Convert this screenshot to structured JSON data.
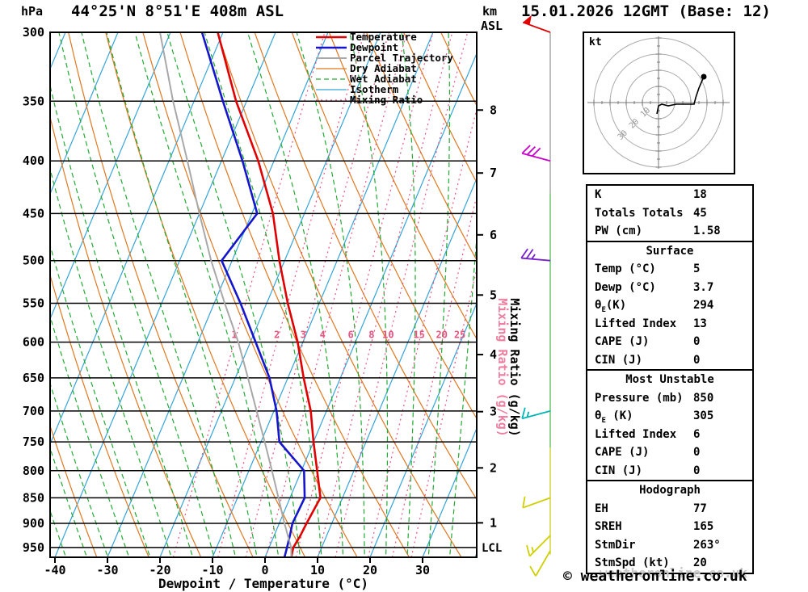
{
  "header": {
    "pressure_unit": "hPa",
    "title": "44°25'N 8°51'E 408m ASL",
    "km_label": "km",
    "asl_label": "ASL",
    "datetime": "15.01.2026 12GMT (Base: 12)"
  },
  "chart_data": {
    "type": "skewt-logp-sounding",
    "xlabel": "Dewpoint / Temperature (°C)",
    "mixing_ratio_axis_label": "Mixing Ratio (g/kg)",
    "pressure_ticks": [
      300,
      350,
      400,
      450,
      500,
      550,
      600,
      650,
      700,
      750,
      800,
      850,
      900,
      950
    ],
    "temp_ticks": [
      -40,
      -30,
      -20,
      -10,
      0,
      10,
      20,
      30
    ],
    "km_levels": [
      {
        "km": 8,
        "p": 357
      },
      {
        "km": 7,
        "p": 411
      },
      {
        "km": 6,
        "p": 472
      },
      {
        "km": 5,
        "p": 540
      },
      {
        "km": 4,
        "p": 617
      },
      {
        "km": 3,
        "p": 701
      },
      {
        "km": 2,
        "p": 795
      },
      {
        "km": 1,
        "p": 899
      }
    ],
    "lcl": {
      "label": "LCL",
      "pressure": 950
    },
    "mixing_ratios": [
      1,
      2,
      3,
      4,
      6,
      8,
      10,
      15,
      20,
      25
    ],
    "mixing_ratio_label_pressure": 600,
    "series": [
      {
        "name": "Temperature",
        "color": "#e00000",
        "width": 2.6,
        "points": [
          [
            971,
            5
          ],
          [
            950,
            4.6
          ],
          [
            925,
            5.0
          ],
          [
            900,
            5.2
          ],
          [
            850,
            5.8
          ],
          [
            800,
            3.0
          ],
          [
            750,
            0
          ],
          [
            700,
            -3
          ],
          [
            650,
            -7
          ],
          [
            600,
            -11
          ],
          [
            550,
            -16
          ],
          [
            500,
            -21
          ],
          [
            450,
            -26
          ],
          [
            400,
            -33
          ],
          [
            350,
            -42
          ],
          [
            300,
            -51
          ]
        ]
      },
      {
        "name": "Dewpoint",
        "color": "#1515cc",
        "width": 2.6,
        "points": [
          [
            971,
            3.7
          ],
          [
            950,
            3.4
          ],
          [
            925,
            3.0
          ],
          [
            900,
            2.5
          ],
          [
            850,
            2.8
          ],
          [
            800,
            0.5
          ],
          [
            750,
            -6.5
          ],
          [
            700,
            -9.5
          ],
          [
            650,
            -13.5
          ],
          [
            600,
            -19
          ],
          [
            550,
            -25
          ],
          [
            500,
            -32
          ],
          [
            450,
            -29
          ],
          [
            400,
            -36
          ],
          [
            350,
            -44.5
          ],
          [
            300,
            -54
          ]
        ]
      },
      {
        "name": "Parcel Trajectory",
        "color": "#a8a8a8",
        "width": 2,
        "points": [
          [
            971,
            5
          ],
          [
            950,
            4.2
          ],
          [
            925,
            2.6
          ],
          [
            900,
            1.0
          ],
          [
            850,
            -2.2
          ],
          [
            800,
            -5.6
          ],
          [
            750,
            -9.3
          ],
          [
            700,
            -13.3
          ],
          [
            650,
            -17.6
          ],
          [
            600,
            -22.3
          ],
          [
            550,
            -28
          ],
          [
            500,
            -34
          ],
          [
            450,
            -40
          ],
          [
            400,
            -46.5
          ],
          [
            350,
            -54
          ],
          [
            300,
            -62
          ]
        ]
      }
    ],
    "legend": [
      {
        "label": "Temperature",
        "color": "#e00000",
        "width": 2.6,
        "dash": ""
      },
      {
        "label": "Dewpoint",
        "color": "#1515cc",
        "width": 2.6,
        "dash": ""
      },
      {
        "label": "Parcel Trajectory",
        "color": "#a8a8a8",
        "width": 2,
        "dash": ""
      },
      {
        "label": "Dry Adiabat",
        "color": "#e07820",
        "width": 1.3,
        "dash": ""
      },
      {
        "label": "Wet Adiabat",
        "color": "#22aa33",
        "width": 1.3,
        "dash": "6 4"
      },
      {
        "label": "Isotherm",
        "color": "#35a4d8",
        "width": 1.3,
        "dash": ""
      },
      {
        "label": "Mixing Ratio",
        "color": "#e75480",
        "width": 1.3,
        "dash": "2 4"
      }
    ],
    "field_colors": {
      "dry_adiabat": "#e07820",
      "wet_adiabat": "#22aa33",
      "isotherm": "#35a4d8",
      "mixing_ratio": "#e75480",
      "pressure_line": "#000000"
    },
    "wind_barbs": [
      {
        "pressure": 300,
        "speed_kt": 50,
        "from_deg": 290,
        "color": "#e00000"
      },
      {
        "pressure": 400,
        "speed_kt": 30,
        "from_deg": 285,
        "color": "#cc00cc"
      },
      {
        "pressure": 500,
        "speed_kt": 25,
        "from_deg": 275,
        "color": "#7722cc"
      },
      {
        "pressure": 700,
        "speed_kt": 15,
        "from_deg": 255,
        "color": "#00b5b5"
      },
      {
        "pressure": 850,
        "speed_kt": 10,
        "from_deg": 250,
        "color": "#cfcf00"
      },
      {
        "pressure": 925,
        "speed_kt": 15,
        "from_deg": 225,
        "color": "#cfcf00"
      },
      {
        "pressure": 957,
        "speed_kt": 10,
        "from_deg": 210,
        "color": "#cfcf00"
      }
    ],
    "staff_segments": [
      {
        "from": 300,
        "to": 430,
        "color": "#999999"
      },
      {
        "from": 430,
        "to": 760,
        "color": "#55bb55"
      },
      {
        "from": 760,
        "to": 965,
        "color": "#cccc22"
      }
    ]
  },
  "hodograph": {
    "unit_label": "kt",
    "rings_kt": [
      10,
      20,
      30,
      40
    ],
    "ring_labels": [
      "10",
      "20",
      "30"
    ],
    "trace_kt": [
      [
        -1,
        -7
      ],
      [
        0,
        -2
      ],
      [
        2,
        -1
      ],
      [
        6,
        -2
      ],
      [
        11,
        -1
      ],
      [
        17,
        -1
      ],
      [
        22,
        -1
      ],
      [
        23,
        3
      ],
      [
        25,
        9
      ],
      [
        28,
        16
      ]
    ],
    "marker_kt": [
      28,
      16
    ]
  },
  "stats_table": {
    "sections": [
      {
        "header": "",
        "rows": [
          [
            "K",
            "18"
          ],
          [
            "Totals Totals",
            "45"
          ],
          [
            "PW (cm)",
            "1.58"
          ]
        ]
      },
      {
        "header": "Surface",
        "rows": [
          [
            "Temp (°C)",
            "5"
          ],
          [
            "Dewp (°C)",
            "3.7"
          ],
          [
            "θ_E(K)",
            "294"
          ],
          [
            "Lifted Index",
            "13"
          ],
          [
            "CAPE (J)",
            "0"
          ],
          [
            "CIN (J)",
            "0"
          ]
        ]
      },
      {
        "header": "Most Unstable",
        "rows": [
          [
            "Pressure (mb)",
            "850"
          ],
          [
            "θ_E (K)",
            "305"
          ],
          [
            "Lifted Index",
            "6"
          ],
          [
            "CAPE (J)",
            "0"
          ],
          [
            "CIN (J)",
            "0"
          ]
        ]
      },
      {
        "header": "Hodograph",
        "rows": [
          [
            "EH",
            "77"
          ],
          [
            "SREH",
            "165"
          ],
          [
            "StmDir",
            "263°"
          ],
          [
            "StmSpd (kt)",
            "20"
          ]
        ]
      }
    ]
  },
  "footer": {
    "watermark": "weatheronline.co.uk",
    "copyright": "© weatheronline.co.uk"
  }
}
